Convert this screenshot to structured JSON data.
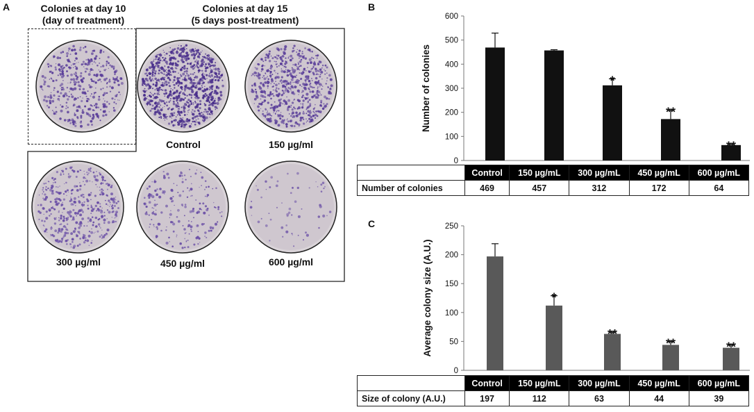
{
  "panel_a": {
    "letter": "A",
    "day10_heading": [
      "Colonies at day 10",
      "(day of treatment)"
    ],
    "day15_heading": [
      "Colonies at day 15",
      "(5 days post-treatment)"
    ],
    "plates": [
      {
        "label": "",
        "density": 420,
        "color": "#5b3f9a"
      },
      {
        "label": "Control",
        "density": 900,
        "color": "#4a2f8c"
      },
      {
        "label": "150 µg/ml",
        "density": 650,
        "color": "#5b3f9a"
      },
      {
        "label": "300 µg/ml",
        "density": 420,
        "color": "#6a4fa6"
      },
      {
        "label": "450 µg/ml",
        "density": 200,
        "color": "#6a4fa6"
      },
      {
        "label": "600 µg/ml",
        "density": 60,
        "color": "#7a62ad"
      }
    ]
  },
  "chart_data": [
    {
      "type": "bar",
      "panel": "B",
      "ylabel": "Number of colonies",
      "ylim": [
        0,
        600
      ],
      "yticks": [
        0,
        100,
        200,
        300,
        400,
        500,
        600
      ],
      "categories": [
        "Control",
        "150 µg/mL",
        "300 µg/mL",
        "450 µg/mL",
        "600 µg/mL"
      ],
      "values": [
        469,
        457,
        312,
        172,
        64
      ],
      "errors": [
        60,
        3,
        27,
        37,
        4
      ],
      "significance": [
        "",
        "",
        "*",
        "**",
        "**"
      ],
      "bar_color": "#111111",
      "table_row_label": "Number of colonies",
      "table_values": [
        "469",
        "457",
        "312",
        "172",
        "64"
      ]
    },
    {
      "type": "bar",
      "panel": "C",
      "ylabel": "Average colony size (A.U.)",
      "ylim": [
        0,
        250
      ],
      "yticks": [
        0,
        50,
        100,
        150,
        200,
        250
      ],
      "categories": [
        "Control",
        "150 µg/mL",
        "300 µg/mL",
        "450 µg/mL",
        "600 µg/mL"
      ],
      "values": [
        197,
        112,
        63,
        44,
        39
      ],
      "errors": [
        22,
        17,
        3,
        6,
        5
      ],
      "significance": [
        "",
        "*",
        "**",
        "**",
        "**"
      ],
      "bar_color": "#595959",
      "table_row_label": "Size of colony (A.U.)",
      "table_values": [
        "197",
        "112",
        "63",
        "44",
        "39"
      ]
    }
  ]
}
